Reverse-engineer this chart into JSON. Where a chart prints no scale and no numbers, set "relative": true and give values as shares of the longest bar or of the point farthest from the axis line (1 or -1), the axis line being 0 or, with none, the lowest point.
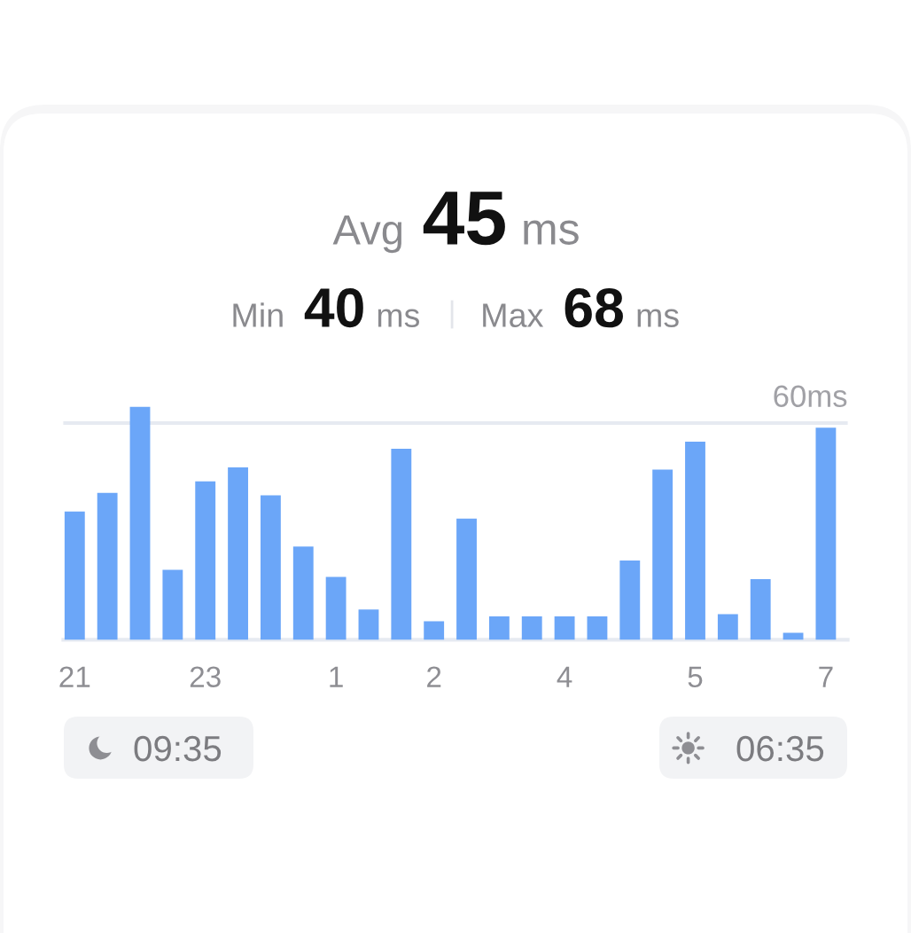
{
  "chart_data": {
    "type": "bar",
    "title": "Avg 45 ms",
    "relative": true,
    "categories": [
      "21",
      null,
      null,
      null,
      "23",
      null,
      null,
      null,
      "1",
      null,
      null,
      "2",
      null,
      null,
      null,
      "4",
      null,
      null,
      null,
      "5",
      null,
      null,
      null,
      "7"
    ],
    "values": [
      0.55,
      0.63,
      1,
      0.3,
      0.68,
      0.74,
      0.62,
      0.4,
      0.27,
      0.13,
      0.82,
      0.08,
      0.52,
      0.1,
      0.1,
      0.1,
      0.1,
      0.34,
      0.73,
      0.85,
      0.11,
      0.26,
      0.03,
      0.91
    ],
    "color": "#6ba6f8",
    "ref_lines": [
      {
        "axis": "y",
        "value": 0.93,
        "label": "60ms",
        "color": "#e6eaf1"
      }
    ],
    "annotations": [
      "Min 40 ms",
      "Max 68 ms",
      "09:35",
      "06:35"
    ]
  }
}
